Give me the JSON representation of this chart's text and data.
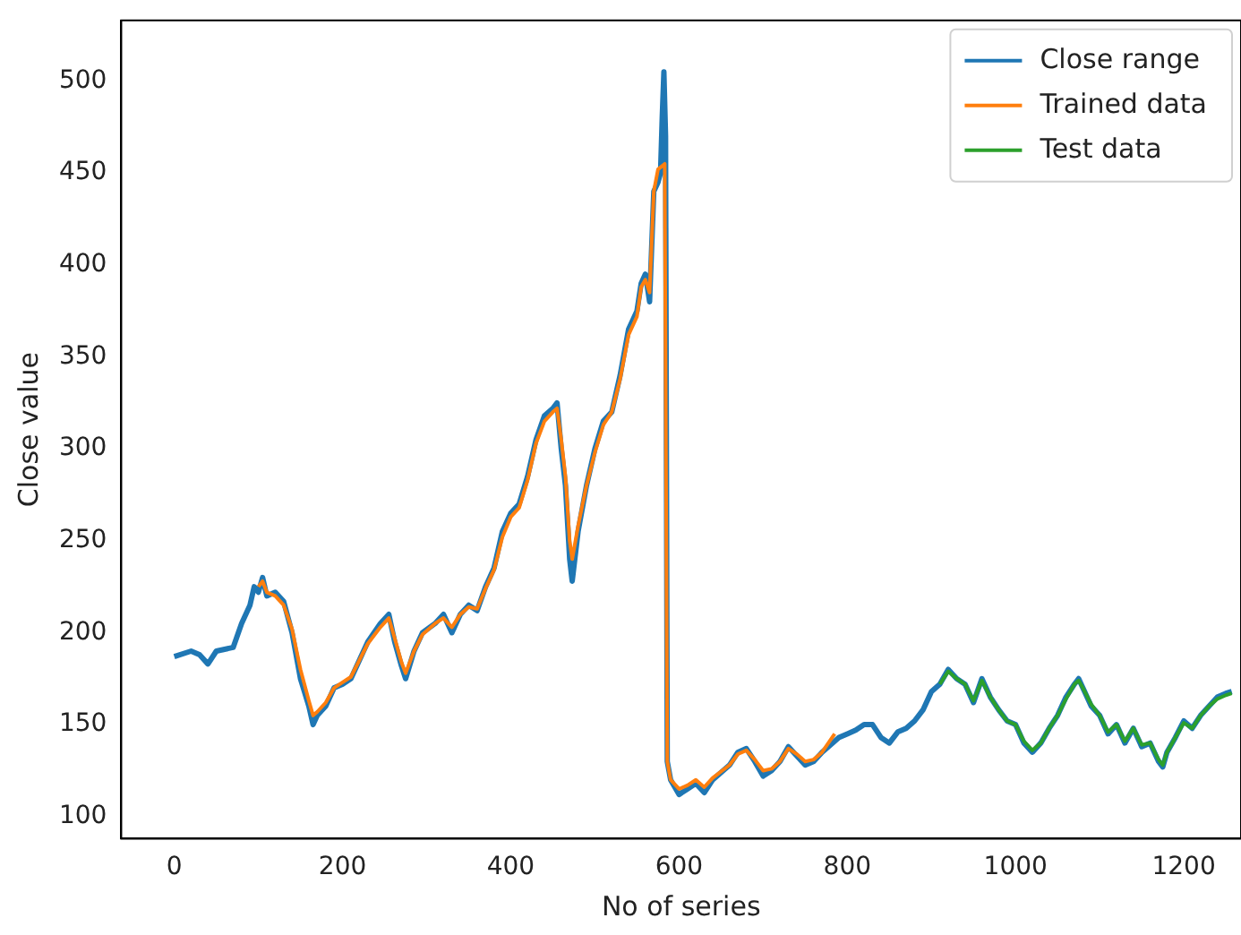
{
  "chart_data": {
    "type": "line",
    "xlabel": "No of series",
    "ylabel": "Close value",
    "xlim": [
      -63,
      1268
    ],
    "ylim": [
      88,
      533
    ],
    "xticks": [
      0,
      200,
      400,
      600,
      800,
      1000,
      1200
    ],
    "yticks": [
      100,
      150,
      200,
      250,
      300,
      350,
      400,
      450,
      500
    ],
    "grid": false,
    "legend": "top right",
    "marker": "none",
    "line_style": "solid",
    "series": [
      {
        "name": "Close range",
        "color": "#1f77b4",
        "x": [
          0,
          20,
          30,
          40,
          50,
          70,
          80,
          90,
          95,
          100,
          105,
          110,
          120,
          130,
          140,
          150,
          160,
          165,
          170,
          180,
          190,
          200,
          210,
          220,
          230,
          245,
          255,
          262,
          270,
          275,
          285,
          295,
          310,
          320,
          330,
          340,
          350,
          360,
          370,
          380,
          390,
          400,
          410,
          420,
          430,
          440,
          450,
          455,
          460,
          465,
          470,
          473,
          480,
          490,
          500,
          510,
          520,
          530,
          540,
          550,
          555,
          560,
          565,
          570,
          575,
          578,
          580,
          582,
          584,
          586,
          590,
          600,
          610,
          620,
          630,
          640,
          660,
          670,
          680,
          690,
          700,
          710,
          720,
          730,
          740,
          750,
          760,
          770,
          790,
          800,
          810,
          820,
          830,
          840,
          850,
          860,
          870,
          880,
          890,
          900,
          910,
          920,
          930,
          940,
          950,
          960,
          970,
          980,
          990,
          1000,
          1010,
          1020,
          1030,
          1040,
          1050,
          1060,
          1070,
          1075,
          1080,
          1090,
          1100,
          1110,
          1120,
          1130,
          1140,
          1150,
          1160,
          1170,
          1175,
          1180,
          1190,
          1200,
          1210,
          1220,
          1230,
          1240,
          1250,
          1257
        ],
        "values": [
          187,
          190,
          188,
          183,
          190,
          192,
          205,
          215,
          225,
          222,
          230,
          220,
          222,
          217,
          200,
          175,
          160,
          150,
          155,
          160,
          170,
          172,
          175,
          185,
          195,
          205,
          210,
          195,
          182,
          175,
          190,
          200,
          205,
          210,
          200,
          210,
          215,
          212,
          225,
          235,
          255,
          265,
          270,
          285,
          305,
          318,
          322,
          325,
          300,
          280,
          240,
          228,
          255,
          280,
          300,
          315,
          320,
          340,
          365,
          375,
          390,
          395,
          380,
          440,
          445,
          450,
          480,
          505,
          470,
          130,
          120,
          112,
          115,
          118,
          113,
          120,
          128,
          135,
          137,
          130,
          122,
          125,
          130,
          138,
          133,
          128,
          130,
          135,
          143,
          145,
          147,
          150,
          150,
          143,
          140,
          146,
          148,
          152,
          158,
          168,
          172,
          180,
          175,
          172,
          162,
          175,
          165,
          158,
          152,
          150,
          140,
          135,
          140,
          148,
          155,
          165,
          172,
          175,
          170,
          160,
          155,
          145,
          150,
          140,
          148,
          138,
          140,
          130,
          127,
          135,
          143,
          152,
          148,
          155,
          160,
          165,
          167,
          168
        ]
      },
      {
        "name": "Trained data",
        "color": "#ff7f0e",
        "x": [
          100,
          105,
          110,
          120,
          130,
          140,
          150,
          160,
          165,
          170,
          180,
          190,
          200,
          210,
          220,
          230,
          245,
          255,
          262,
          270,
          275,
          285,
          295,
          310,
          320,
          330,
          340,
          350,
          360,
          370,
          380,
          390,
          400,
          410,
          420,
          430,
          440,
          450,
          455,
          460,
          465,
          470,
          473,
          480,
          490,
          500,
          510,
          520,
          530,
          540,
          550,
          555,
          560,
          565,
          570,
          575,
          583,
          586,
          590,
          600,
          610,
          620,
          630,
          640,
          660,
          670,
          680,
          690,
          700,
          710,
          720,
          730,
          740,
          750,
          760,
          770,
          785
        ],
        "values": [
          225,
          228,
          222,
          220,
          215,
          202,
          180,
          163,
          155,
          157,
          162,
          170,
          173,
          176,
          185,
          194,
          203,
          208,
          197,
          184,
          178,
          190,
          199,
          205,
          208,
          203,
          210,
          214,
          213,
          224,
          234,
          252,
          263,
          268,
          283,
          303,
          315,
          320,
          322,
          305,
          285,
          250,
          240,
          258,
          280,
          298,
          313,
          320,
          338,
          362,
          372,
          388,
          392,
          385,
          440,
          452,
          455,
          130,
          120,
          115,
          117,
          120,
          116,
          121,
          128,
          134,
          136,
          131,
          125,
          126,
          130,
          137,
          134,
          130,
          131,
          135,
          145
        ]
      },
      {
        "name": "Test data",
        "color": "#2ca02c",
        "x": [
          910,
          920,
          930,
          940,
          950,
          960,
          970,
          980,
          990,
          1000,
          1010,
          1020,
          1030,
          1040,
          1050,
          1060,
          1070,
          1075,
          1080,
          1090,
          1100,
          1110,
          1120,
          1130,
          1140,
          1150,
          1160,
          1170,
          1175,
          1180,
          1190,
          1200,
          1210,
          1220,
          1230,
          1240,
          1250,
          1257
        ],
        "values": [
          172,
          179,
          175,
          172,
          163,
          174,
          165,
          158,
          152,
          150,
          141,
          136,
          140,
          148,
          155,
          164,
          172,
          174,
          170,
          161,
          155,
          146,
          150,
          141,
          148,
          139,
          140,
          131,
          128,
          135,
          143,
          151,
          148,
          155,
          160,
          164,
          166,
          167
        ]
      }
    ]
  }
}
